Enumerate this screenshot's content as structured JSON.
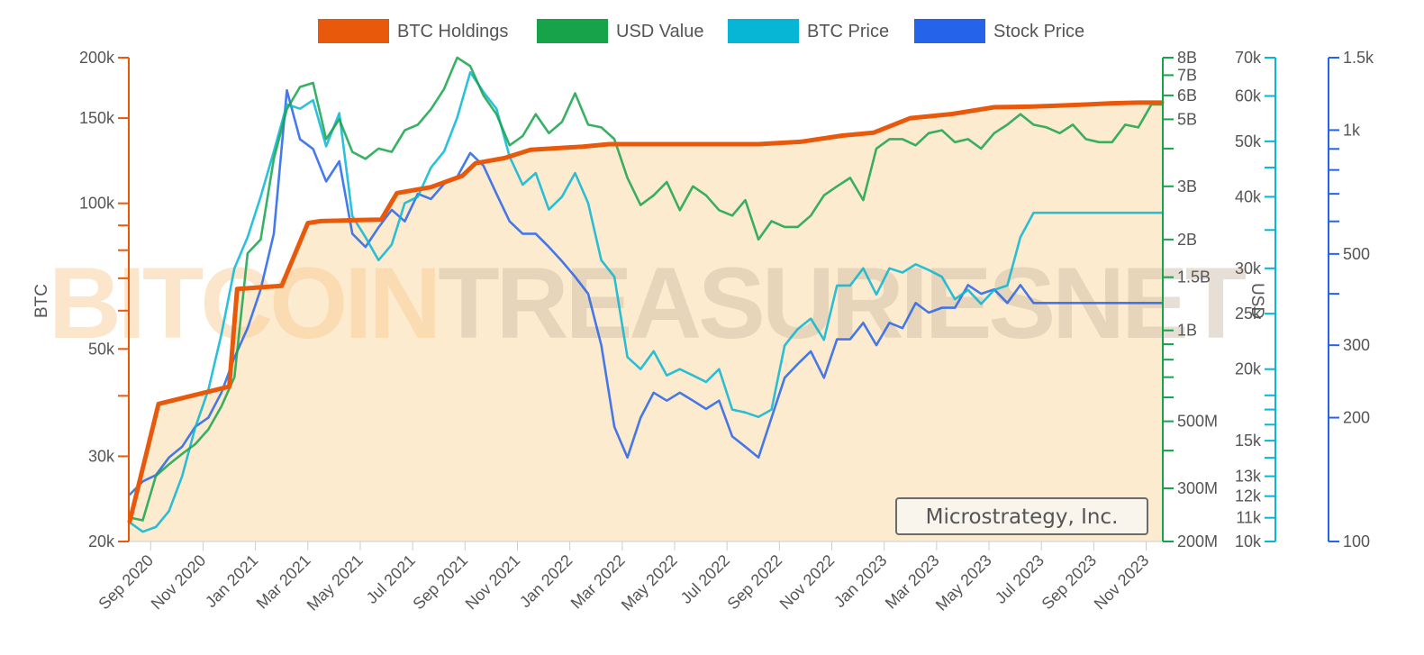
{
  "chart_data": {
    "type": "line",
    "company": "Microstrategy, Inc.",
    "watermark": {
      "part1": "BITCOIN",
      "part2": "TREASURIES",
      "part3": "NET"
    },
    "legend": [
      {
        "name": "BTC Holdings",
        "color": "#e8590c"
      },
      {
        "name": "USD Value",
        "color": "#16a34a"
      },
      {
        "name": "BTC Price",
        "color": "#06b6d4"
      },
      {
        "name": "Stock Price",
        "color": "#2563eb"
      }
    ],
    "x_ticks": [
      "Sep 2020",
      "Nov 2020",
      "Jan 2021",
      "Mar 2021",
      "May 2021",
      "Jul 2021",
      "Sep 2021",
      "Nov 2021",
      "Jan 2022",
      "Mar 2022",
      "May 2022",
      "Jul 2022",
      "Sep 2022",
      "Nov 2022",
      "Jan 2023",
      "Mar 2023",
      "May 2023",
      "Jul 2023",
      "Sep 2023",
      "Nov 2023"
    ],
    "x_range": [
      0,
      39.4
    ],
    "axes": {
      "btc": {
        "title": "BTC",
        "ticks": [
          {
            "v": 200000,
            "label": "200k"
          },
          {
            "v": 150000,
            "label": "150k"
          },
          {
            "v": 100000,
            "label": "100k"
          },
          {
            "v": 50000,
            "label": "50k"
          },
          {
            "v": 30000,
            "label": "30k"
          },
          {
            "v": 20000,
            "label": "20k"
          }
        ],
        "minor": [
          40000,
          60000,
          70000,
          80000,
          90000
        ],
        "range": [
          20000,
          200000
        ],
        "color": "#e8590c"
      },
      "usd_value": {
        "ticks": [
          {
            "v": 8000000000,
            "label": "8B"
          },
          {
            "v": 7000000000,
            "label": "7B"
          },
          {
            "v": 6000000000,
            "label": "6B"
          },
          {
            "v": 5000000000,
            "label": "5B"
          },
          {
            "v": 3000000000,
            "label": "3B"
          },
          {
            "v": 2000000000,
            "label": "2B"
          },
          {
            "v": 1500000000,
            "label": "1.5B"
          },
          {
            "v": 1000000000,
            "label": "1B"
          },
          {
            "v": 500000000,
            "label": "500M"
          },
          {
            "v": 300000000,
            "label": "300M"
          },
          {
            "v": 200000000,
            "label": "200M"
          }
        ],
        "minor": [
          4000000000,
          900000000,
          800000000,
          700000000,
          600000000,
          400000000
        ],
        "range": [
          200000000,
          8000000000
        ],
        "color": "#16a34a"
      },
      "btc_price": {
        "title": "USD",
        "ticks": [
          {
            "v": 70000,
            "label": "70k"
          },
          {
            "v": 60000,
            "label": "60k"
          },
          {
            "v": 50000,
            "label": "50k"
          },
          {
            "v": 40000,
            "label": "40k"
          },
          {
            "v": 30000,
            "label": "30k"
          },
          {
            "v": 25000,
            "label": "25k"
          },
          {
            "v": 20000,
            "label": "20k"
          },
          {
            "v": 15000,
            "label": "15k"
          },
          {
            "v": 13000,
            "label": "13k"
          },
          {
            "v": 12000,
            "label": "12k"
          },
          {
            "v": 11000,
            "label": "11k"
          },
          {
            "v": 10000,
            "label": "10k"
          }
        ],
        "minor": [
          45000,
          35000,
          18000,
          17000,
          16000,
          14000
        ],
        "range": [
          10000,
          70000
        ],
        "color": "#06b6d4"
      },
      "stock_price": {
        "ticks": [
          {
            "v": 1500,
            "label": "1.5k"
          },
          {
            "v": 1000,
            "label": "1k"
          },
          {
            "v": 500,
            "label": "500"
          },
          {
            "v": 300,
            "label": "300"
          },
          {
            "v": 200,
            "label": "200"
          },
          {
            "v": 100,
            "label": "100"
          }
        ],
        "minor": [
          900,
          800,
          700,
          600,
          400
        ],
        "range": [
          100,
          1500
        ],
        "color": "#2563eb"
      }
    },
    "series": [
      {
        "name": "BTC Holdings",
        "axis": "btc",
        "x": [
          0,
          1.1,
          3.8,
          4.1,
          5.8,
          6.8,
          7.3,
          8.7,
          9.6,
          10.2,
          11.5,
          12.7,
          13.2,
          14.3,
          15.3,
          16.3,
          17.3,
          18.3,
          19.5,
          20.3,
          21.2,
          22.6,
          24.0,
          25.6,
          27.2,
          28.4,
          29.8,
          31.4,
          33.0,
          34.3,
          35.2,
          36.5,
          37.5,
          38.5,
          39.4
        ],
        "values": [
          22000,
          38500,
          41800,
          66500,
          67500,
          91000,
          91900,
          92300,
          92500,
          105000,
          108000,
          114000,
          121000,
          124000,
          129000,
          130000,
          131000,
          132500,
          132500,
          132500,
          132500,
          132500,
          132500,
          134000,
          138000,
          140000,
          150000,
          153000,
          158000,
          158400,
          159000,
          160000,
          161000,
          161500,
          161500
        ],
        "color": "#e8590c"
      },
      {
        "name": "USD Value",
        "axis": "usd_value",
        "x": [
          0,
          0.5,
          1,
          1.5,
          2,
          2.5,
          3,
          3.5,
          4,
          4.5,
          5,
          5.5,
          6,
          6.5,
          7,
          7.5,
          8,
          8.5,
          9,
          9.5,
          10,
          10.5,
          11,
          11.5,
          12,
          12.5,
          13,
          13.5,
          14,
          14.5,
          15,
          15.5,
          16,
          16.5,
          17,
          17.5,
          18,
          18.5,
          19,
          19.5,
          20,
          20.5,
          21,
          21.5,
          22,
          22.5,
          23,
          23.5,
          24,
          24.5,
          25,
          25.5,
          26,
          26.5,
          27,
          27.5,
          28,
          28.5,
          29,
          29.5,
          30,
          30.5,
          31,
          31.5,
          32,
          32.5,
          33,
          33.5,
          34,
          34.5,
          35,
          35.5,
          36,
          36.5,
          37,
          37.5,
          38,
          38.5,
          39,
          39.4
        ],
        "values": [
          240000000,
          235000000,
          330000000,
          360000000,
          390000000,
          420000000,
          470000000,
          560000000,
          700000000,
          1800000000,
          2000000000,
          3700000000,
          5400000000,
          6400000000,
          6600000000,
          4300000000,
          5000000000,
          3900000000,
          3700000000,
          4000000000,
          3900000000,
          4600000000,
          4800000000,
          5400000000,
          6300000000,
          8000000000,
          7500000000,
          6000000000,
          5200000000,
          4100000000,
          4400000000,
          5200000000,
          4500000000,
          4900000000,
          6100000000,
          4800000000,
          4700000000,
          4300000000,
          3200000000,
          2600000000,
          2800000000,
          3100000000,
          2500000000,
          3000000000,
          2800000000,
          2500000000,
          2400000000,
          2700000000,
          2000000000,
          2300000000,
          2200000000,
          2200000000,
          2400000000,
          2800000000,
          3000000000,
          3200000000,
          2700000000,
          4000000000,
          4300000000,
          4300000000,
          4100000000,
          4500000000,
          4600000000,
          4200000000,
          4300000000,
          4000000000,
          4500000000,
          4800000000,
          5200000000,
          4800000000,
          4700000000,
          4500000000,
          4800000000,
          4300000000,
          4200000000,
          4200000000,
          4800000000,
          4700000000,
          5600000000,
          5600000000
        ],
        "color": "#16a34a"
      },
      {
        "name": "BTC Price",
        "axis": "btc_price",
        "x": [
          0,
          0.5,
          1,
          1.5,
          2,
          2.5,
          3,
          3.5,
          4,
          4.5,
          5,
          5.5,
          6,
          6.5,
          7,
          7.5,
          8,
          8.5,
          9,
          9.5,
          10,
          10.5,
          11,
          11.5,
          12,
          12.5,
          13,
          13.5,
          14,
          14.5,
          15,
          15.5,
          16,
          16.5,
          17,
          17.5,
          18,
          18.5,
          19,
          19.5,
          20,
          20.5,
          21,
          21.5,
          22,
          22.5,
          23,
          23.5,
          24,
          24.5,
          25,
          25.5,
          26,
          26.5,
          27,
          27.5,
          28,
          28.5,
          29,
          29.5,
          30,
          30.5,
          31,
          31.5,
          32,
          32.5,
          33,
          33.5,
          34,
          34.5,
          35,
          35.5,
          36,
          36.5,
          37,
          37.5,
          38,
          38.5,
          39,
          39.4
        ],
        "values": [
          10800,
          10400,
          10600,
          11300,
          13000,
          15800,
          18400,
          23000,
          30000,
          34000,
          40000,
          48000,
          58000,
          57000,
          59000,
          49000,
          56000,
          37000,
          34000,
          31000,
          33000,
          39000,
          40000,
          45000,
          48000,
          55000,
          66000,
          61000,
          57000,
          47000,
          42000,
          44000,
          38000,
          40000,
          44000,
          39000,
          31000,
          29000,
          21000,
          20000,
          21500,
          19500,
          20000,
          19500,
          19000,
          20000,
          17000,
          16800,
          16500,
          17000,
          22000,
          23500,
          24500,
          22500,
          28000,
          28000,
          30000,
          27000,
          30000,
          29500,
          30500,
          29800,
          29000,
          26500,
          27500,
          26000,
          27500,
          28000,
          34000,
          37500,
          37500,
          37500,
          37500,
          37500,
          37500,
          37500,
          37500,
          37500,
          37500,
          37500
        ],
        "color": "#06b6d4"
      },
      {
        "name": "Stock Price",
        "axis": "stock_price",
        "x": [
          0,
          0.5,
          1,
          1.5,
          2,
          2.5,
          3,
          3.5,
          4,
          4.5,
          5,
          5.5,
          6,
          6.5,
          7,
          7.5,
          8,
          8.5,
          9,
          9.5,
          10,
          10.5,
          11,
          11.5,
          12,
          12.5,
          13,
          13.5,
          14,
          14.5,
          15,
          15.5,
          16,
          16.5,
          17,
          17.5,
          18,
          18.5,
          19,
          19.5,
          20,
          20.5,
          21,
          21.5,
          22,
          22.5,
          23,
          23.5,
          24,
          24.5,
          25,
          25.5,
          26,
          26.5,
          27,
          27.5,
          28,
          28.5,
          29,
          29.5,
          30,
          30.5,
          31,
          31.5,
          32,
          32.5,
          33,
          33.5,
          34,
          34.5,
          35,
          35.5,
          36,
          36.5,
          37,
          37.5,
          38,
          38.5,
          39,
          39.4
        ],
        "values": [
          130,
          140,
          145,
          160,
          170,
          190,
          200,
          230,
          280,
          330,
          410,
          560,
          1250,
          950,
          900,
          750,
          840,
          560,
          520,
          580,
          640,
          600,
          700,
          680,
          740,
          770,
          880,
          820,
          700,
          600,
          560,
          560,
          520,
          480,
          440,
          400,
          300,
          190,
          160,
          200,
          230,
          220,
          230,
          220,
          210,
          220,
          180,
          170,
          160,
          200,
          250,
          270,
          290,
          250,
          310,
          310,
          340,
          300,
          340,
          330,
          380,
          360,
          370,
          370,
          420,
          400,
          410,
          380,
          420,
          380,
          380,
          380,
          380,
          380,
          380,
          380,
          380,
          380,
          380,
          380
        ],
        "color": "#2563eb"
      }
    ],
    "area_fill": "#fdebcf",
    "ylabel_left": "BTC",
    "ylabel_right": "USD"
  }
}
